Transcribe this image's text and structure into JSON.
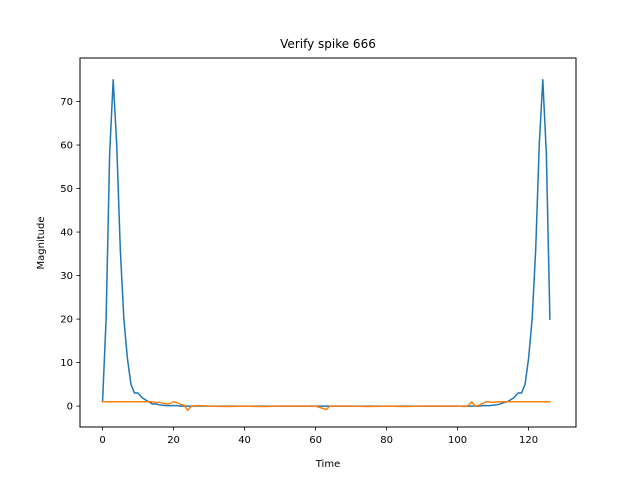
{
  "chart_data": {
    "type": "line",
    "title": "Verify spike 666",
    "xlabel": "Time",
    "ylabel": "Magnitude",
    "xlim": [
      -6.35,
      133.35
    ],
    "ylim": [
      -4.8,
      80.0
    ],
    "x_ticks": [
      0,
      20,
      40,
      60,
      80,
      100,
      120
    ],
    "y_ticks": [
      0,
      10,
      20,
      30,
      40,
      50,
      60,
      70
    ],
    "grid": false,
    "legend": "none",
    "series": [
      {
        "color": "#1f77b4",
        "points": [
          [
            0,
            1
          ],
          [
            1,
            20
          ],
          [
            2,
            58
          ],
          [
            3,
            75
          ],
          [
            4,
            60
          ],
          [
            5,
            36
          ],
          [
            6,
            20
          ],
          [
            7,
            11
          ],
          [
            8,
            5
          ],
          [
            9,
            3
          ],
          [
            10,
            3
          ],
          [
            11,
            2
          ],
          [
            12,
            1.5
          ],
          [
            13,
            1
          ],
          [
            14,
            0.5
          ],
          [
            15,
            0.5
          ],
          [
            16,
            0.3
          ],
          [
            17,
            0.2
          ],
          [
            18,
            0.1
          ],
          [
            19,
            0.1
          ],
          [
            20,
            0.1
          ],
          [
            21,
            0.1
          ],
          [
            22,
            0
          ],
          [
            24,
            0
          ],
          [
            26,
            0
          ],
          [
            30,
            0
          ],
          [
            40,
            0
          ],
          [
            50,
            0
          ],
          [
            60,
            0
          ],
          [
            70,
            0
          ],
          [
            80,
            0
          ],
          [
            90,
            0
          ],
          [
            100,
            0
          ],
          [
            104,
            0
          ],
          [
            106,
            0
          ],
          [
            107,
            0.1
          ],
          [
            108,
            0.1
          ],
          [
            109,
            0.1
          ],
          [
            110,
            0.2
          ],
          [
            111,
            0.3
          ],
          [
            112,
            0.5
          ],
          [
            113,
            0.8
          ],
          [
            114,
            1
          ],
          [
            115,
            1.5
          ],
          [
            116,
            2
          ],
          [
            117,
            3
          ],
          [
            118,
            3
          ],
          [
            119,
            5
          ],
          [
            120,
            11
          ],
          [
            121,
            20
          ],
          [
            122,
            36
          ],
          [
            123,
            60
          ],
          [
            124,
            75
          ],
          [
            125,
            58
          ],
          [
            126,
            20
          ]
        ]
      },
      {
        "color": "#ff7f0e",
        "points": [
          [
            0,
            1
          ],
          [
            5,
            1
          ],
          [
            10,
            1
          ],
          [
            14,
            1
          ],
          [
            15,
            0.8
          ],
          [
            16,
            0.9
          ],
          [
            17,
            0.7
          ],
          [
            18,
            0.5
          ],
          [
            19,
            0.6
          ],
          [
            20,
            1
          ],
          [
            21,
            0.8
          ],
          [
            22,
            0.4
          ],
          [
            23,
            0.2
          ],
          [
            24,
            -1
          ],
          [
            25,
            0
          ],
          [
            27,
            0.1
          ],
          [
            30,
            0
          ],
          [
            35,
            -0.1
          ],
          [
            40,
            0
          ],
          [
            45,
            -0.1
          ],
          [
            50,
            0
          ],
          [
            55,
            0
          ],
          [
            60,
            0
          ],
          [
            63,
            -0.8
          ],
          [
            64,
            0
          ],
          [
            70,
            0
          ],
          [
            75,
            -0.1
          ],
          [
            80,
            0
          ],
          [
            85,
            -0.1
          ],
          [
            90,
            0
          ],
          [
            95,
            0
          ],
          [
            100,
            0
          ],
          [
            102,
            -0.1
          ],
          [
            103,
            0.1
          ],
          [
            104,
            1
          ],
          [
            105,
            0
          ],
          [
            106,
            0.2
          ],
          [
            107,
            0.6
          ],
          [
            108,
            1
          ],
          [
            110,
            0.9
          ],
          [
            112,
            1
          ],
          [
            115,
            1
          ],
          [
            120,
            1
          ],
          [
            126,
            1
          ]
        ]
      }
    ]
  }
}
